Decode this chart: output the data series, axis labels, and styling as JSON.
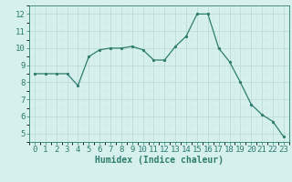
{
  "x": [
    0,
    1,
    2,
    3,
    4,
    5,
    6,
    7,
    8,
    9,
    10,
    11,
    12,
    13,
    14,
    15,
    16,
    17,
    18,
    19,
    20,
    21,
    22,
    23
  ],
  "y": [
    8.5,
    8.5,
    8.5,
    8.5,
    7.8,
    9.5,
    9.9,
    10.0,
    10.0,
    10.1,
    9.9,
    9.3,
    9.3,
    10.1,
    10.7,
    12.0,
    12.0,
    10.0,
    9.2,
    8.0,
    6.7,
    6.1,
    5.7,
    4.8
  ],
  "line_color": "#2e7d6e",
  "marker": ".",
  "marker_size": 3,
  "bg_color": "#d6f0ee",
  "grid_major_color": "#b8d8d4",
  "grid_minor_color": "#cce8e4",
  "xlabel": "Humidex (Indice chaleur)",
  "ylim": [
    4.5,
    12.5
  ],
  "xlim": [
    -0.5,
    23.5
  ],
  "yticks": [
    5,
    6,
    7,
    8,
    9,
    10,
    11,
    12
  ],
  "xticks": [
    0,
    1,
    2,
    3,
    4,
    5,
    6,
    7,
    8,
    9,
    10,
    11,
    12,
    13,
    14,
    15,
    16,
    17,
    18,
    19,
    20,
    21,
    22,
    23
  ],
  "tick_color": "#2e7d6e",
  "label_color": "#2e7d6e",
  "font_size": 6.5
}
